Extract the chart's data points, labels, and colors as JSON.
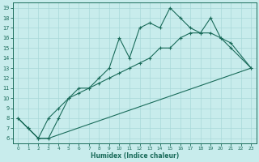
{
  "xlabel": "Humidex (Indice chaleur)",
  "bg_color": "#c8ecec",
  "grid_color": "#a8d8d8",
  "line_color": "#1a6b5a",
  "xlim": [
    -0.5,
    23.5
  ],
  "ylim": [
    5.5,
    19.5
  ],
  "xticks": [
    0,
    1,
    2,
    3,
    4,
    5,
    6,
    7,
    8,
    9,
    10,
    11,
    12,
    13,
    14,
    15,
    16,
    17,
    18,
    19,
    20,
    21,
    22,
    23
  ],
  "yticks": [
    6,
    7,
    8,
    9,
    10,
    11,
    12,
    13,
    14,
    15,
    16,
    17,
    18,
    19
  ],
  "s1_x": [
    0,
    1,
    2,
    3,
    4,
    5,
    6,
    7,
    8,
    9,
    10,
    11,
    12,
    13,
    14,
    15,
    16,
    17,
    18,
    19,
    20,
    21,
    23
  ],
  "s1_y": [
    8,
    7,
    6,
    6,
    8,
    10,
    11,
    11,
    12,
    13,
    16,
    14,
    17,
    17.5,
    17,
    19,
    18,
    17,
    16.5,
    18,
    16,
    15,
    13
  ],
  "s2_x": [
    0,
    1,
    2,
    3,
    4,
    5,
    6,
    7,
    8,
    9,
    10,
    11,
    12,
    13,
    14,
    15,
    16,
    17,
    18,
    19,
    20,
    21,
    23
  ],
  "s2_y": [
    8,
    7,
    6,
    8,
    9,
    10,
    10.5,
    11,
    11.5,
    12,
    12.5,
    13,
    13.5,
    14,
    15,
    15,
    16,
    16.5,
    16.5,
    16.5,
    16,
    15.5,
    13
  ],
  "s3_x": [
    0,
    1,
    2,
    3,
    23
  ],
  "s3_y": [
    8,
    7,
    6,
    6,
    13
  ]
}
